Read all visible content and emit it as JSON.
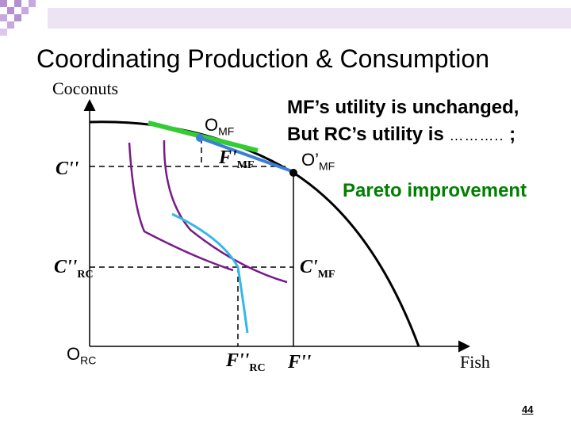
{
  "slide": {
    "title": "Coordinating Production & Consumption",
    "page_number": "44"
  },
  "axes": {
    "y_label": "Coconuts",
    "x_label": "Fish",
    "origin": {
      "main": "O",
      "sub": "RC"
    }
  },
  "ticks": {
    "c_double_prime": {
      "main": "C''",
      "sub": ""
    },
    "c_rc": {
      "main": "C''",
      "sub": "RC"
    },
    "c_mf": {
      "main": "C'",
      "sub": "MF"
    },
    "f_rc": {
      "main": "F''",
      "sub": "RC"
    },
    "f_double_prime": {
      "main": "F''",
      "sub": ""
    },
    "f_mf": {
      "main": "F'",
      "sub": "MF"
    }
  },
  "points": {
    "omf": {
      "main": "O",
      "sub": "MF"
    },
    "omf_prime": {
      "main": "O’",
      "sub": "MF"
    }
  },
  "annotations": {
    "line1": "MF’s utility is unchanged,",
    "line2_text": "But RC’s utility is",
    "line2_blank": "………..",
    "line2_end": ";",
    "pareto": "Pareto improvement"
  },
  "colors": {
    "frontier": "#000000",
    "indifference": "#7a1a8a",
    "rc_curve": "#33b8e8",
    "mf_tangent_green": "#33cc33",
    "mf_tangent_blue": "#3a7fd9",
    "pareto_text": "#008000"
  }
}
